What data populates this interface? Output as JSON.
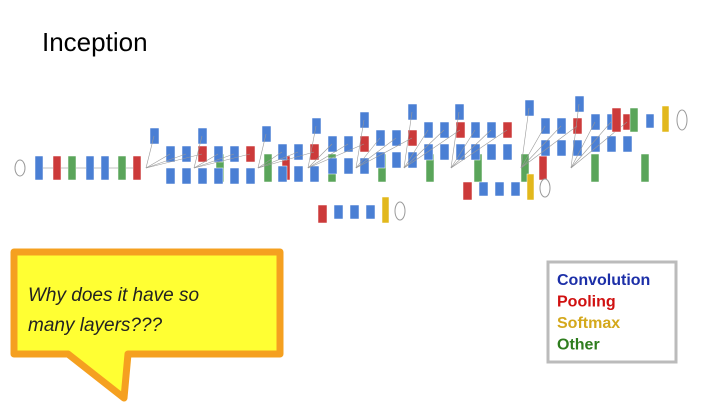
{
  "title": "Inception",
  "callout": {
    "lines": [
      "Why does it have so",
      "many layers???"
    ]
  },
  "legend": {
    "items": [
      {
        "label": "Convolution",
        "color": "#1c2fa8"
      },
      {
        "label": "Pooling",
        "color": "#d01010"
      },
      {
        "label": "Softmax",
        "color": "#d4a81c"
      },
      {
        "label": "Other",
        "color": "#2e7d1e"
      }
    ]
  }
}
